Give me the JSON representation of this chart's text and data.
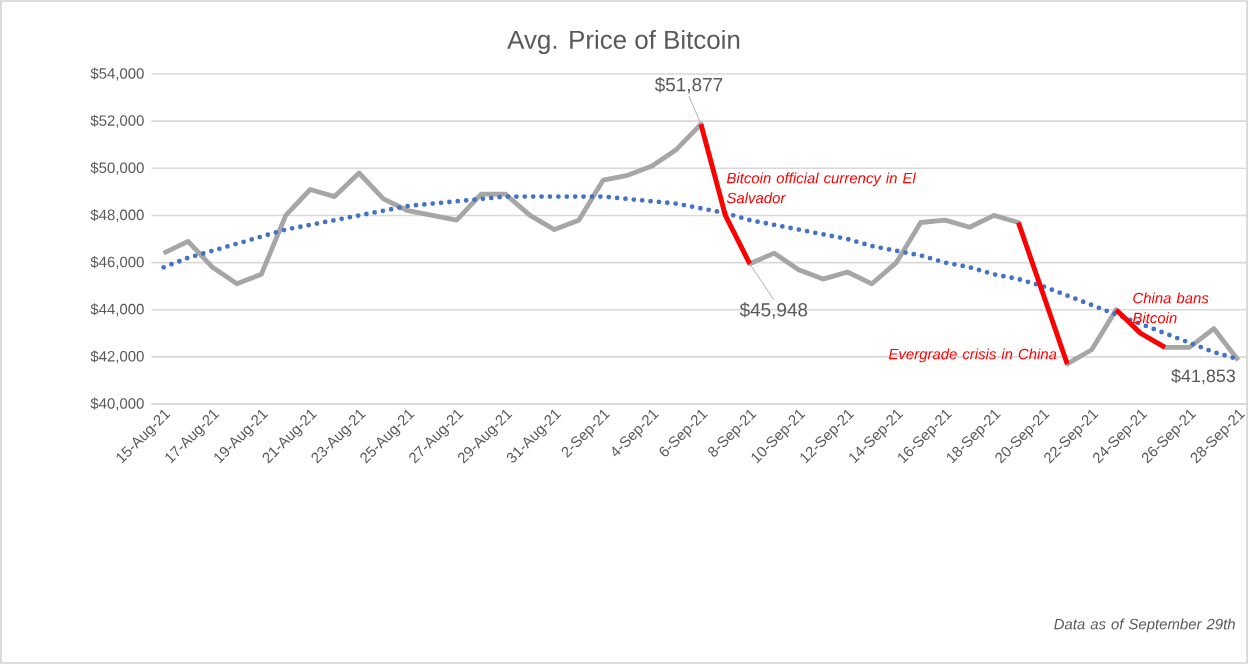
{
  "chart_data": {
    "type": "line",
    "title": "Avg. Price of Bitcoin",
    "categories": [
      "15-Aug-21",
      null,
      "17-Aug-21",
      null,
      "19-Aug-21",
      null,
      "21-Aug-21",
      null,
      "23-Aug-21",
      null,
      "25-Aug-21",
      null,
      "27-Aug-21",
      null,
      "29-Aug-21",
      null,
      "31-Aug-21",
      null,
      "2-Sep-21",
      null,
      "4-Sep-21",
      null,
      "6-Sep-21",
      null,
      "8-Sep-21",
      null,
      "10-Sep-21",
      null,
      "12-Sep-21",
      null,
      "14-Sep-21",
      null,
      "16-Sep-21",
      null,
      "18-Sep-21",
      null,
      "20-Sep-21",
      null,
      "22-Sep-21",
      null,
      "24-Sep-21",
      null,
      "26-Sep-21",
      null,
      "28-Sep-21"
    ],
    "series": [
      {
        "color": "#a6a6a6",
        "values": [
          46400,
          46900,
          45800,
          45100,
          45500,
          48000,
          49100,
          48800,
          49800,
          48700,
          48200,
          48000,
          47800,
          48900,
          48900,
          48000,
          47400,
          47800,
          49500,
          49700,
          50100,
          50800,
          51877,
          48000,
          45948,
          46400,
          45700,
          45300,
          45600,
          45100,
          46000,
          47700,
          47800,
          47500,
          48000,
          47700,
          44700,
          41700,
          42300,
          44000,
          43000,
          42400,
          42400,
          43200,
          41853
        ],
        "value_labels": [
          null,
          null,
          null,
          null,
          null,
          null,
          null,
          null,
          null,
          null,
          null,
          null,
          null,
          null,
          null,
          null,
          null,
          null,
          null,
          null,
          null,
          null,
          "$51,877",
          null,
          "$45,948",
          null,
          null,
          null,
          null,
          null,
          null,
          null,
          null,
          null,
          null,
          null,
          null,
          null,
          null,
          null,
          null,
          null,
          null,
          null,
          "$41,853"
        ]
      },
      {
        "color": "#ff0000",
        "values": [
          null,
          null,
          null,
          null,
          null,
          null,
          null,
          null,
          null,
          null,
          null,
          null,
          null,
          null,
          null,
          null,
          null,
          null,
          null,
          null,
          null,
          null,
          51877,
          48000,
          45948,
          null,
          null,
          null,
          null,
          null,
          null,
          null,
          null,
          null,
          null,
          47700,
          44700,
          41700,
          null,
          44000,
          43000,
          42400,
          null,
          null,
          null
        ]
      },
      {
        "color": "#4472c4",
        "line_style": "dotted",
        "values": [
          45800,
          46200,
          46500,
          46800,
          47100,
          47400,
          47600,
          47800,
          48000,
          48200,
          48400,
          48500,
          48600,
          48700,
          48800,
          48800,
          48800,
          48800,
          48800,
          48700,
          48600,
          48500,
          48300,
          48100,
          47800,
          47600,
          47400,
          47200,
          47000,
          46700,
          46500,
          46300,
          46000,
          45800,
          45500,
          45300,
          45000,
          44600,
          44200,
          43800,
          43400,
          43000,
          42600,
          42200,
          41900
        ]
      }
    ],
    "ylim": [
      40000,
      54000
    ],
    "yticks": [
      {
        "value": 40000,
        "label": "$40,000"
      },
      {
        "value": 42000,
        "label": "$42,000"
      },
      {
        "value": 44000,
        "label": "$44,000"
      },
      {
        "value": 46000,
        "label": "$46,000"
      },
      {
        "value": 48000,
        "label": "$48,000"
      },
      {
        "value": 50000,
        "label": "$50,000"
      },
      {
        "value": 52000,
        "label": "$52,000"
      },
      {
        "value": 54000,
        "label": "$54,000"
      }
    ],
    "grid": "y",
    "marker": "none",
    "annotations": [
      "Bitcoin official currency in El Salvador",
      "Evergrade crisis in China",
      "China bans Bitcoin",
      "Data as of September 29th"
    ]
  }
}
